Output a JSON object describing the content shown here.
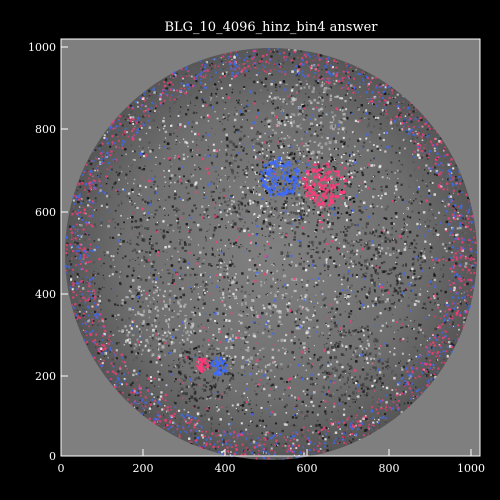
{
  "figure": {
    "title": "BLG_10_4096_hinz_bin4 answer",
    "x_ticks": [
      "0",
      "200",
      "400",
      "600",
      "800",
      "1000"
    ],
    "y_ticks": [
      "0",
      "200",
      "400",
      "600",
      "800",
      "1000"
    ],
    "xlim": [
      0,
      1024
    ],
    "ylim": [
      0,
      1024
    ],
    "colors": {
      "background": "#000000",
      "plot_area": "#7f7f7f",
      "axis": "#ffffff",
      "positive_marker": "#ff3b7a",
      "negative_marker": "#3d6bff"
    }
  },
  "image": {
    "subject": "solar full-disk magnetogram",
    "disk_center": [
      512,
      512
    ],
    "disk_radius": 470
  }
}
